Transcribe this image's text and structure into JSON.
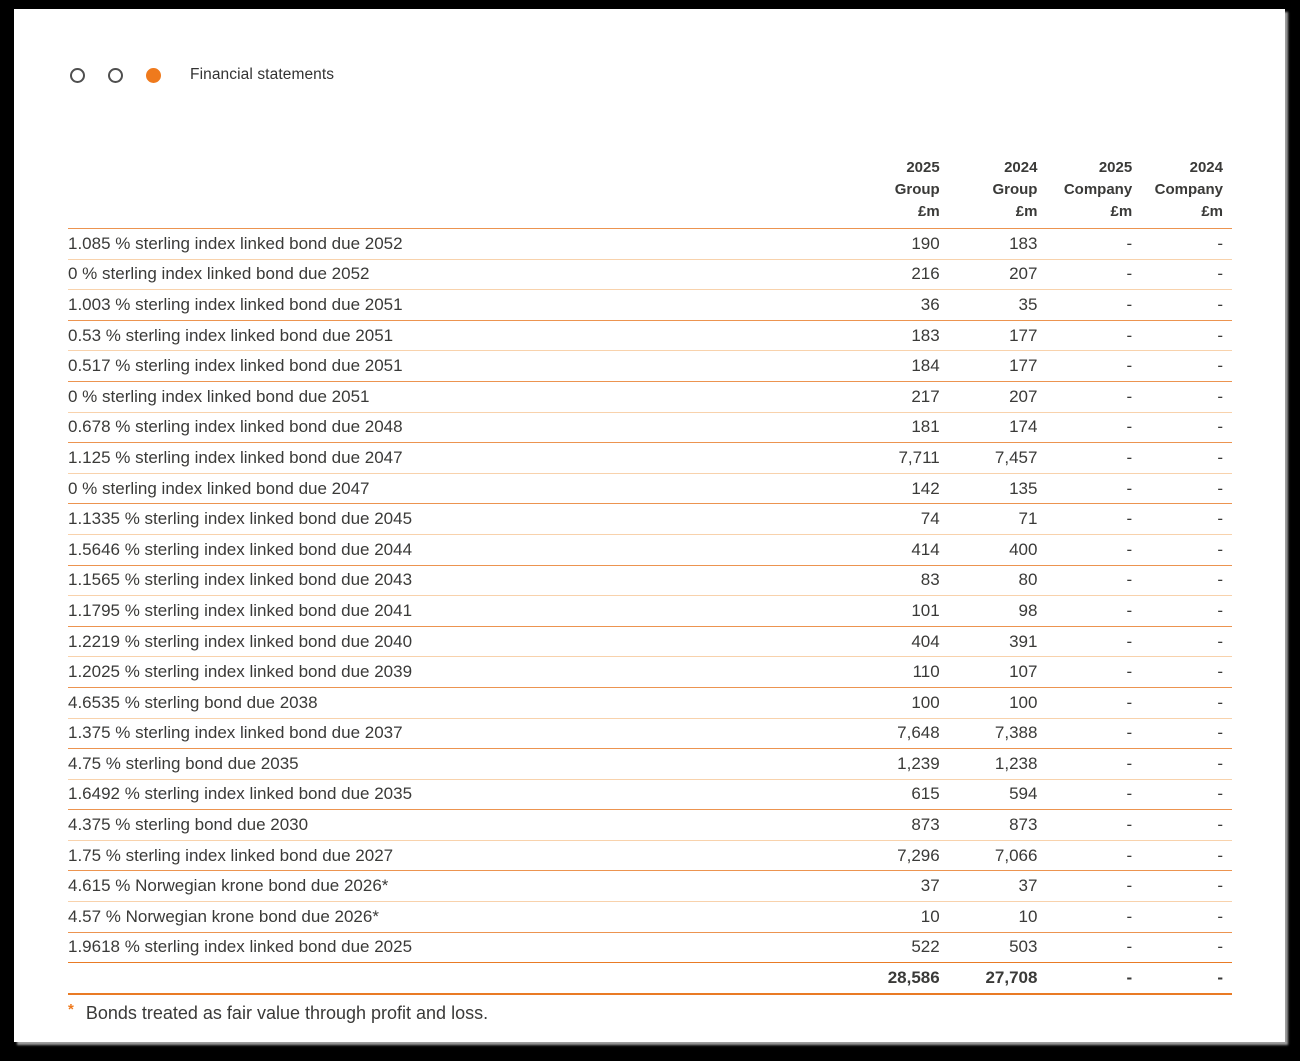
{
  "accent_color": "#ef7a1d",
  "breadcrumb": {
    "dots": [
      "outline",
      "outline",
      "filled"
    ],
    "label": "Financial statements"
  },
  "table": {
    "columns": [
      {
        "year": "2025",
        "entity": "Group",
        "unit": "£m"
      },
      {
        "year": "2024",
        "entity": "Group",
        "unit": "£m"
      },
      {
        "year": "2025",
        "entity": "Company",
        "unit": "£m"
      },
      {
        "year": "2024",
        "entity": "Company",
        "unit": "£m"
      }
    ],
    "rows": [
      {
        "label": "1.085 % sterling index linked bond due 2052",
        "group_2025": "190",
        "group_2024": "183",
        "company_2025": "-",
        "company_2024": "-"
      },
      {
        "label": "0 % sterling index linked bond due 2052",
        "group_2025": "216",
        "group_2024": "207",
        "company_2025": "-",
        "company_2024": "-"
      },
      {
        "label": "1.003 % sterling index linked bond due 2051",
        "group_2025": "36",
        "group_2024": "35",
        "company_2025": "-",
        "company_2024": "-"
      },
      {
        "label": "0.53 % sterling index linked bond due 2051",
        "group_2025": "183",
        "group_2024": "177",
        "company_2025": "-",
        "company_2024": "-"
      },
      {
        "label": "0.517 % sterling index linked bond due 2051",
        "group_2025": "184",
        "group_2024": "177",
        "company_2025": "-",
        "company_2024": "-"
      },
      {
        "label": "0 % sterling index linked bond due 2051",
        "group_2025": "217",
        "group_2024": "207",
        "company_2025": "-",
        "company_2024": "-"
      },
      {
        "label": "0.678 % sterling index linked bond due 2048",
        "group_2025": "181",
        "group_2024": "174",
        "company_2025": "-",
        "company_2024": "-"
      },
      {
        "label": "1.125 % sterling index linked bond due 2047",
        "group_2025": "7,711",
        "group_2024": "7,457",
        "company_2025": "-",
        "company_2024": "-"
      },
      {
        "label": "0 % sterling index linked bond due 2047",
        "group_2025": "142",
        "group_2024": "135",
        "company_2025": "-",
        "company_2024": "-"
      },
      {
        "label": "1.1335 % sterling index linked bond due 2045",
        "group_2025": "74",
        "group_2024": "71",
        "company_2025": "-",
        "company_2024": "-"
      },
      {
        "label": "1.5646 % sterling index linked bond due 2044",
        "group_2025": "414",
        "group_2024": "400",
        "company_2025": "-",
        "company_2024": "-"
      },
      {
        "label": "1.1565 % sterling index linked bond due 2043",
        "group_2025": "83",
        "group_2024": "80",
        "company_2025": "-",
        "company_2024": "-"
      },
      {
        "label": "1.1795 % sterling index linked bond due 2041",
        "group_2025": "101",
        "group_2024": "98",
        "company_2025": "-",
        "company_2024": "-"
      },
      {
        "label": "1.2219 % sterling index linked bond due 2040",
        "group_2025": "404",
        "group_2024": "391",
        "company_2025": "-",
        "company_2024": "-"
      },
      {
        "label": "1.2025 % sterling index linked bond due 2039",
        "group_2025": "110",
        "group_2024": "107",
        "company_2025": "-",
        "company_2024": "-"
      },
      {
        "label": "4.6535 % sterling bond due 2038",
        "group_2025": "100",
        "group_2024": "100",
        "company_2025": "-",
        "company_2024": "-"
      },
      {
        "label": "1.375 % sterling index linked bond due 2037",
        "group_2025": "7,648",
        "group_2024": "7,388",
        "company_2025": "-",
        "company_2024": "-"
      },
      {
        "label": "4.75 % sterling bond due 2035",
        "group_2025": "1,239",
        "group_2024": "1,238",
        "company_2025": "-",
        "company_2024": "-"
      },
      {
        "label": "1.6492 % sterling index linked bond due 2035",
        "group_2025": "615",
        "group_2024": "594",
        "company_2025": "-",
        "company_2024": "-"
      },
      {
        "label": "4.375 % sterling bond due 2030",
        "group_2025": "873",
        "group_2024": "873",
        "company_2025": "-",
        "company_2024": "-"
      },
      {
        "label": "1.75 % sterling index linked bond due 2027",
        "group_2025": "7,296",
        "group_2024": "7,066",
        "company_2025": "-",
        "company_2024": "-"
      },
      {
        "label": "4.615 % Norwegian krone bond due 2026*",
        "group_2025": "37",
        "group_2024": "37",
        "company_2025": "-",
        "company_2024": "-"
      },
      {
        "label": "4.57 % Norwegian krone bond due 2026*",
        "group_2025": "10",
        "group_2024": "10",
        "company_2025": "-",
        "company_2024": "-"
      },
      {
        "label": "1.9618 % sterling index linked bond due 2025",
        "group_2025": "522",
        "group_2024": "503",
        "company_2025": "-",
        "company_2024": "-"
      }
    ],
    "total": {
      "label": "",
      "group_2025": "28,586",
      "group_2024": "27,708",
      "company_2025": "-",
      "company_2024": "-"
    }
  },
  "footnote": {
    "marker": "*",
    "text": "Bonds treated as fair value through profit and loss."
  }
}
